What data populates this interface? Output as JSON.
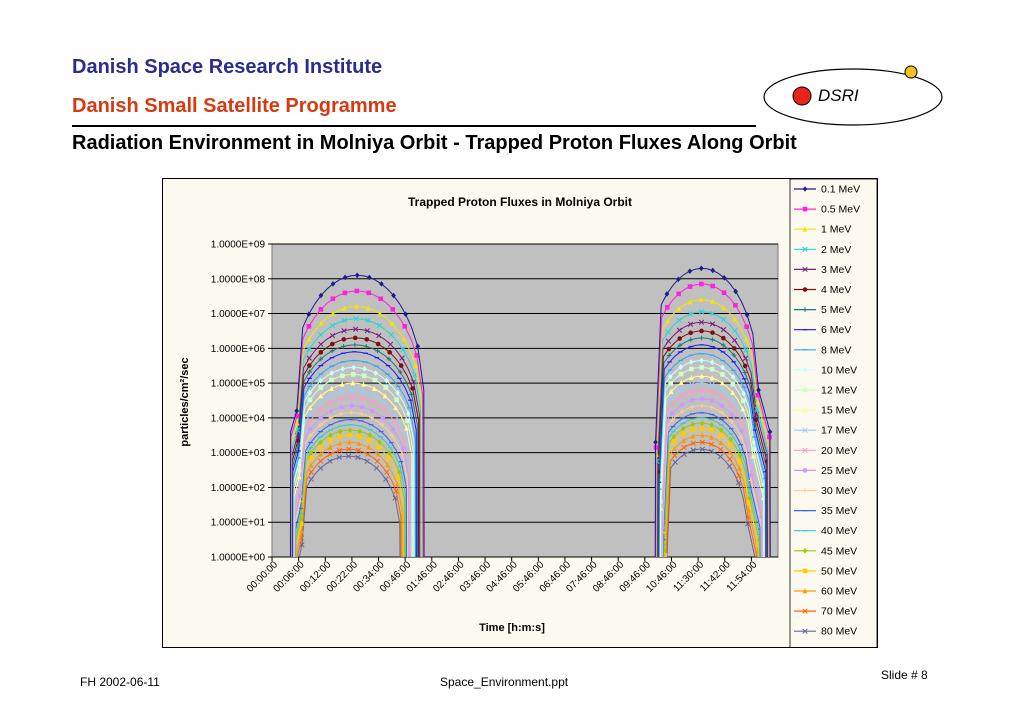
{
  "header": {
    "institute": "Danish Space Research Institute",
    "programme": "Danish Small Satellite Programme",
    "title": "Radiation Environment in Molniya Orbit - Trapped Proton Fluxes Along Orbit"
  },
  "logo": {
    "text": "DSRI",
    "dot_color": "#e8251c",
    "orbit_dot_color": "#f4c21c"
  },
  "footer": {
    "left": "FH  2002-06-11",
    "center": "Space_Environment.ppt",
    "right": "Slide # 8"
  },
  "chart_data": {
    "type": "line",
    "title": "Trapped Proton Fluxes in Molniya Orbit",
    "xlabel": "Time [h:m:s]",
    "ylabel": "particles/cm²/sec",
    "yscale": "log",
    "ylim": [
      1,
      1000000000
    ],
    "ytick_labels": [
      "1.0000E+00",
      "1.0000E+01",
      "1.0000E+02",
      "1.0000E+03",
      "1.0000E+04",
      "1.0000E+05",
      "1.0000E+06",
      "1.0000E+07",
      "1.0000E+08",
      "1.0000E+09"
    ],
    "xtick_labels": [
      "00:00:00",
      "00:06:00",
      "00:12:00",
      "00:22:00",
      "00:34:00",
      "00:46:00",
      "01:46:00",
      "02:46:00",
      "03:46:00",
      "04:46:00",
      "05:46:00",
      "06:46:00",
      "07:46:00",
      "08:46:00",
      "09:46:00",
      "10:46:00",
      "11:30:00",
      "11:42:00",
      "11:54:00"
    ],
    "grid": true,
    "legend_position": "right",
    "plot_background": "#c0c0c0",
    "series": [
      {
        "name": "0.1 MeV",
        "color": "#1f1d8c",
        "marker": "diamond",
        "peak": 8.1,
        "shoulder": 4.8
      },
      {
        "name": "0.5 MeV",
        "color": "#ff22dd",
        "marker": "square",
        "peak": 7.65,
        "shoulder": 4.65
      },
      {
        "name": "1 MeV",
        "color": "#f2e600",
        "marker": "triangle",
        "peak": 7.2,
        "shoulder": 4.45
      },
      {
        "name": "2 MeV",
        "color": "#22d6d6",
        "marker": "x",
        "peak": 6.85,
        "shoulder": 4.25
      },
      {
        "name": "3 MeV",
        "color": "#7a1a7a",
        "marker": "star",
        "peak": 6.55,
        "shoulder": 4.1
      },
      {
        "name": "4 MeV",
        "color": "#7a1010",
        "marker": "circle",
        "peak": 6.3,
        "shoulder": 3.95
      },
      {
        "name": "5 MeV",
        "color": "#1a7a7a",
        "marker": "plus",
        "peak": 6.1,
        "shoulder": 3.8
      },
      {
        "name": "6 MeV",
        "color": "#1a1aff",
        "marker": "dash",
        "peak": 5.9,
        "shoulder": 3.65
      },
      {
        "name": "8 MeV",
        "color": "#22aaff",
        "marker": "dash",
        "peak": 5.65,
        "shoulder": 3.45
      },
      {
        "name": "10 MeV",
        "color": "#ccffff",
        "marker": "diamond",
        "peak": 5.45,
        "shoulder": 3.3
      },
      {
        "name": "12 MeV",
        "color": "#ccffcc",
        "marker": "square",
        "peak": 5.25,
        "shoulder": 3.1
      },
      {
        "name": "15 MeV",
        "color": "#ffff99",
        "marker": "triangle",
        "peak": 5.0,
        "shoulder": 2.9
      },
      {
        "name": "17 MeV",
        "color": "#99ccff",
        "marker": "x",
        "peak": 4.8,
        "shoulder": 2.75
      },
      {
        "name": "20 MeV",
        "color": "#ff99cc",
        "marker": "x",
        "peak": 4.6,
        "shoulder": 2.6
      },
      {
        "name": "25 MeV",
        "color": "#cc99ff",
        "marker": "circle",
        "peak": 4.35,
        "shoulder": 2.35
      },
      {
        "name": "30 MeV",
        "color": "#ffcc99",
        "marker": "plus",
        "peak": 4.15,
        "shoulder": 2.2
      },
      {
        "name": "35 MeV",
        "color": "#3366ff",
        "marker": "dash",
        "peak": 3.95,
        "shoulder": 2.0
      },
      {
        "name": "40 MeV",
        "color": "#33cccc",
        "marker": "dash",
        "peak": 3.8,
        "shoulder": 1.85
      },
      {
        "name": "45 MeV",
        "color": "#99cc00",
        "marker": "diamond",
        "peak": 3.65,
        "shoulder": 1.7
      },
      {
        "name": "50 MeV",
        "color": "#ffcc00",
        "marker": "square",
        "peak": 3.5,
        "shoulder": 1.55
      },
      {
        "name": "60 MeV",
        "color": "#ff9900",
        "marker": "triangle",
        "peak": 3.3,
        "shoulder": 1.35
      },
      {
        "name": "70 MeV",
        "color": "#ff6600",
        "marker": "x",
        "peak": 3.1,
        "shoulder": 1.15
      },
      {
        "name": "80 MeV",
        "color": "#666699",
        "marker": "star",
        "peak": 2.9,
        "shoulder": 0.95
      }
    ]
  }
}
